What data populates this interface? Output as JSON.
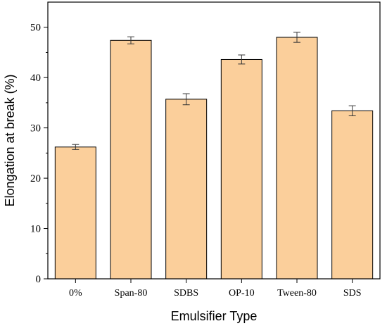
{
  "chart_data": {
    "type": "bar",
    "title": "",
    "xlabel": "Emulsifier Type",
    "ylabel": "Elongation at break (%)",
    "categories": [
      "0%",
      "Span-80",
      "SDBS",
      "OP-10",
      "Tween-80",
      "SDS"
    ],
    "values": [
      26.2,
      47.4,
      35.7,
      43.6,
      48.0,
      33.4
    ],
    "errors": [
      0.5,
      0.7,
      1.1,
      0.9,
      1.0,
      1.0
    ],
    "ylim": [
      0,
      55
    ],
    "yticks": [
      "0",
      "10",
      "20",
      "30",
      "40",
      "50"
    ],
    "grid": false,
    "legend": "none",
    "colors": {
      "bar_fill": "#FBCF9B",
      "bar_stroke": "#000000",
      "error_bar": "#333333"
    }
  }
}
